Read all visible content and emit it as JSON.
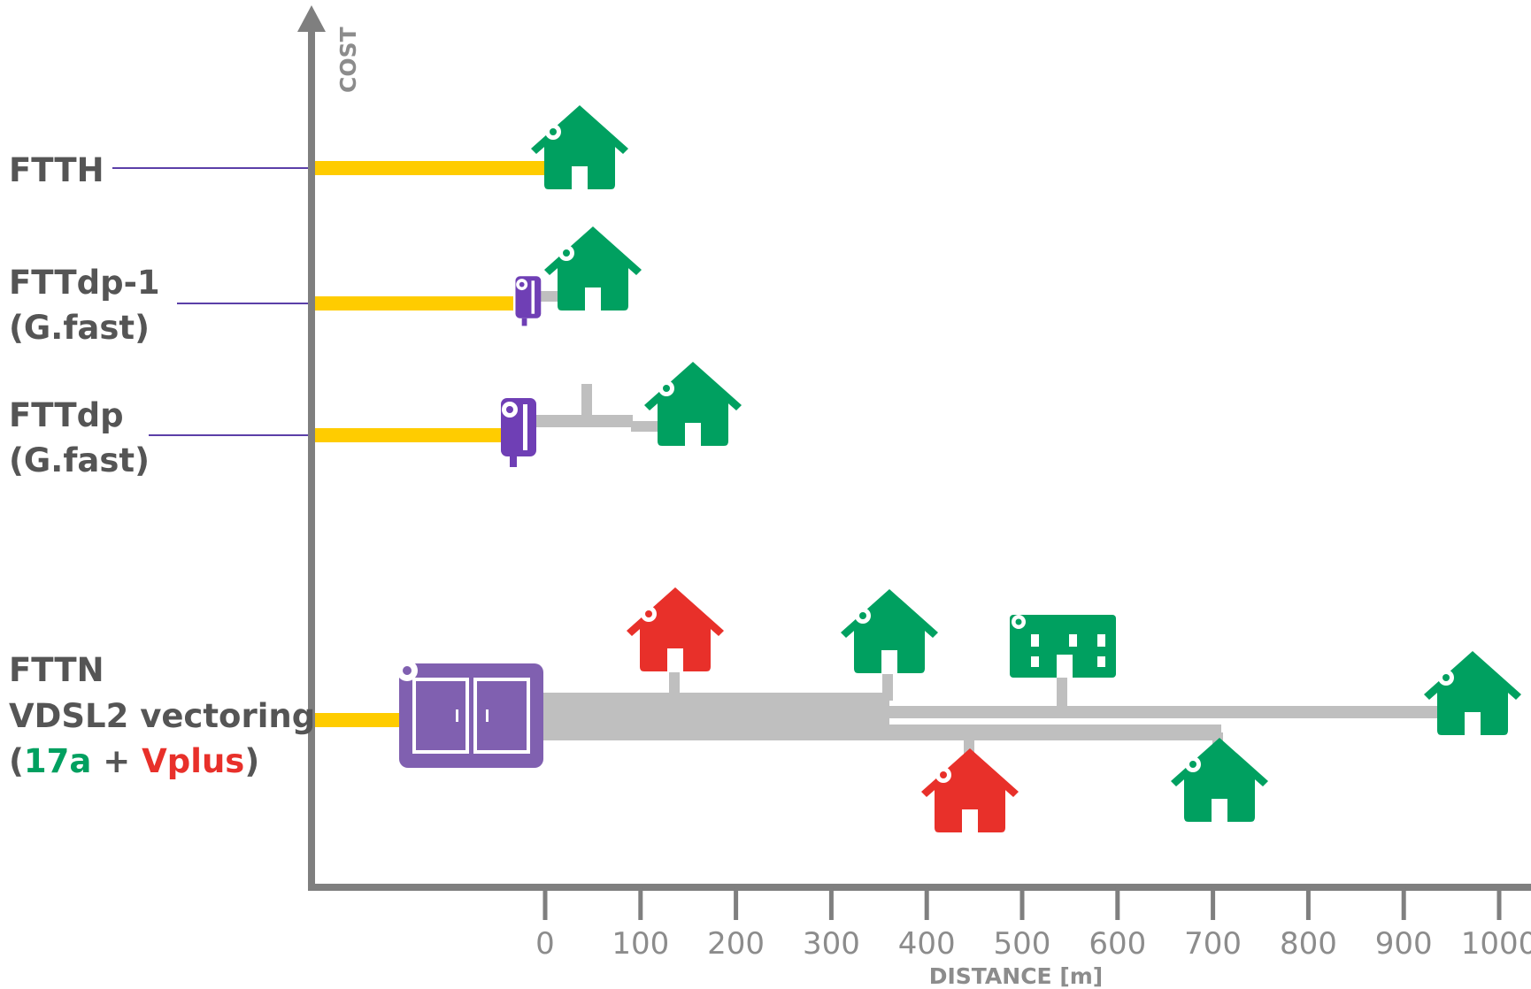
{
  "title_fragment": "...",
  "axes": {
    "y_label": "COST",
    "x_label": "DISTANCE [m]",
    "x_ticks": [
      "0",
      "100",
      "200",
      "300",
      "400",
      "500",
      "600",
      "700",
      "800",
      "900",
      "1000"
    ]
  },
  "technologies": {
    "ftth": {
      "line1": "FTTH"
    },
    "fttdp1": {
      "line1": "FTTdp-1",
      "line2": "(G.fast)"
    },
    "fttdp": {
      "line1": "FTTdp",
      "line2": "(G.fast)"
    },
    "fttn": {
      "line1": "FTTN",
      "line2": "VDSL2 vectoring",
      "line3_open": "(",
      "line3_a": "17a",
      "line3_plus": " + ",
      "line3_b": "Vplus",
      "line3_close": ")"
    }
  },
  "colors": {
    "axis": "#7f7f7f",
    "fiber": "#ffcc00",
    "copper": "#bfbfbf",
    "dp_node": "#6f3fb5",
    "cabinet": "#8060b0",
    "house_green": "#00a060",
    "house_red": "#e8302a",
    "label": "#555555",
    "leader": "#5b3fa8",
    "label_17a": "#00a060",
    "label_vplus": "#e8302a"
  }
}
